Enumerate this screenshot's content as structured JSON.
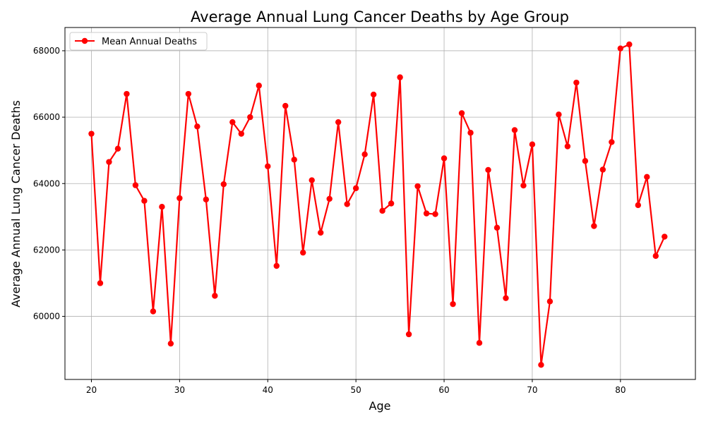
{
  "chart_data": {
    "type": "line",
    "title": "Average Annual Lung Cancer Deaths by Age Group",
    "xlabel": "Age",
    "ylabel": "Average Annual Lung Cancer Deaths",
    "xlim": [
      17,
      88.5
    ],
    "ylim": [
      58100,
      68700
    ],
    "xticks": [
      20,
      30,
      40,
      50,
      60,
      70,
      80
    ],
    "yticks": [
      60000,
      62000,
      64000,
      66000,
      68000
    ],
    "grid": true,
    "legend_position": "upper-left",
    "series": [
      {
        "name": "Mean Annual Deaths",
        "color": "#ff0000",
        "marker": "circle",
        "x": [
          20,
          21,
          22,
          23,
          24,
          25,
          26,
          27,
          28,
          29,
          30,
          31,
          32,
          33,
          34,
          35,
          36,
          37,
          38,
          39,
          40,
          41,
          42,
          43,
          44,
          45,
          46,
          47,
          48,
          49,
          50,
          51,
          52,
          53,
          54,
          55,
          56,
          57,
          58,
          59,
          60,
          61,
          62,
          63,
          64,
          65,
          66,
          67,
          68,
          69,
          70,
          71,
          72,
          73,
          74,
          75,
          76,
          77,
          78,
          79,
          80,
          81,
          82,
          83,
          84,
          85
        ],
        "y": [
          65500,
          61000,
          64650,
          65050,
          66700,
          63950,
          63480,
          60150,
          63300,
          59180,
          63560,
          66700,
          65720,
          63520,
          60620,
          63980,
          65850,
          65500,
          66000,
          66950,
          64520,
          61520,
          66340,
          64720,
          61920,
          64100,
          62520,
          63540,
          65850,
          63380,
          63860,
          64880,
          66680,
          63180,
          63400,
          67200,
          59460,
          63920,
          63100,
          63080,
          64760,
          60370,
          66120,
          65530,
          59200,
          64410,
          62670,
          60550,
          65610,
          63940,
          65180,
          58540,
          60450,
          66080,
          65120,
          67040,
          64680,
          62720,
          64420,
          65250,
          68070,
          68190,
          63350,
          64200,
          61820,
          62400
        ]
      }
    ]
  }
}
